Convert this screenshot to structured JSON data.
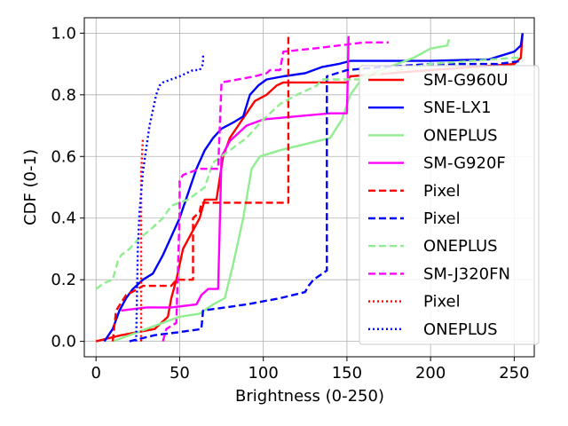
{
  "chart_data": {
    "type": "line",
    "title": "",
    "xlabel": "Brightness (0-250)",
    "ylabel": "CDF (0-1)",
    "xlim": [
      -7,
      262
    ],
    "ylim": [
      -0.05,
      1.05
    ],
    "xticks": [
      0,
      50,
      100,
      150,
      200,
      250
    ],
    "yticks": [
      0.0,
      0.2,
      0.4,
      0.6,
      0.8,
      1.0
    ],
    "xtick_labels": [
      "0",
      "50",
      "100",
      "150",
      "200",
      "250"
    ],
    "ytick_labels": [
      "0.0",
      "0.2",
      "0.4",
      "0.6",
      "0.8",
      "1.0"
    ],
    "grid": true,
    "legend_position": "lower-right",
    "series": [
      {
        "name": "SM-G960U",
        "color": "#ff0000",
        "style": "solid",
        "points": [
          [
            0,
            0.0
          ],
          [
            15,
            0.02
          ],
          [
            35,
            0.04
          ],
          [
            43,
            0.08
          ],
          [
            45,
            0.14
          ],
          [
            48,
            0.2
          ],
          [
            52,
            0.3
          ],
          [
            58,
            0.36
          ],
          [
            62,
            0.4
          ],
          [
            65,
            0.46
          ],
          [
            72,
            0.46
          ],
          [
            76,
            0.6
          ],
          [
            80,
            0.66
          ],
          [
            85,
            0.7
          ],
          [
            90,
            0.74
          ],
          [
            95,
            0.78
          ],
          [
            102,
            0.8
          ],
          [
            108,
            0.83
          ],
          [
            112,
            0.84
          ],
          [
            150,
            0.84
          ],
          [
            152,
            0.86
          ],
          [
            200,
            0.88
          ],
          [
            250,
            0.9
          ],
          [
            254,
            0.92
          ],
          [
            255,
            1.0
          ]
        ]
      },
      {
        "name": "SNE-LX1",
        "color": "#0000ff",
        "style": "solid",
        "points": [
          [
            5,
            0.0
          ],
          [
            10,
            0.04
          ],
          [
            14,
            0.1
          ],
          [
            18,
            0.14
          ],
          [
            22,
            0.17
          ],
          [
            28,
            0.2
          ],
          [
            34,
            0.22
          ],
          [
            40,
            0.28
          ],
          [
            45,
            0.34
          ],
          [
            50,
            0.4
          ],
          [
            55,
            0.48
          ],
          [
            60,
            0.56
          ],
          [
            65,
            0.62
          ],
          [
            70,
            0.66
          ],
          [
            75,
            0.69
          ],
          [
            82,
            0.71
          ],
          [
            88,
            0.73
          ],
          [
            92,
            0.8
          ],
          [
            97,
            0.83
          ],
          [
            102,
            0.85
          ],
          [
            112,
            0.86
          ],
          [
            125,
            0.87
          ],
          [
            135,
            0.89
          ],
          [
            145,
            0.9
          ],
          [
            152,
            0.91
          ],
          [
            200,
            0.91
          ],
          [
            235,
            0.915
          ],
          [
            250,
            0.94
          ],
          [
            254,
            0.96
          ],
          [
            255,
            1.0
          ]
        ]
      },
      {
        "name": "ONEPLUS",
        "color": "#90ee90",
        "style": "solid",
        "points": [
          [
            10,
            0.0
          ],
          [
            20,
            0.02
          ],
          [
            30,
            0.04
          ],
          [
            40,
            0.06
          ],
          [
            45,
            0.07
          ],
          [
            50,
            0.08
          ],
          [
            62,
            0.09
          ],
          [
            70,
            0.12
          ],
          [
            77,
            0.14
          ],
          [
            82,
            0.25
          ],
          [
            88,
            0.4
          ],
          [
            93,
            0.56
          ],
          [
            98,
            0.6
          ],
          [
            110,
            0.62
          ],
          [
            125,
            0.64
          ],
          [
            140,
            0.66
          ],
          [
            147,
            0.72
          ],
          [
            152,
            0.8
          ],
          [
            160,
            0.86
          ],
          [
            170,
            0.88
          ],
          [
            180,
            0.9
          ],
          [
            190,
            0.92
          ],
          [
            200,
            0.95
          ],
          [
            210,
            0.96
          ],
          [
            211,
            0.98
          ]
        ]
      },
      {
        "name": "SM-G920F",
        "color": "#ff00ff",
        "style": "solid",
        "points": [
          [
            15,
            0.1
          ],
          [
            30,
            0.11
          ],
          [
            45,
            0.11
          ],
          [
            60,
            0.12
          ],
          [
            63,
            0.15
          ],
          [
            67,
            0.17
          ],
          [
            73,
            0.17
          ],
          [
            75,
            0.6
          ],
          [
            80,
            0.65
          ],
          [
            90,
            0.7
          ],
          [
            100,
            0.72
          ],
          [
            120,
            0.73
          ],
          [
            140,
            0.74
          ],
          [
            150,
            0.74
          ],
          [
            151,
            0.99
          ]
        ]
      },
      {
        "name": "Pixel",
        "color": "#ff0000",
        "style": "dashed",
        "points": [
          [
            10,
            0.0
          ],
          [
            12,
            0.1
          ],
          [
            18,
            0.15
          ],
          [
            25,
            0.17
          ],
          [
            28,
            0.18
          ],
          [
            45,
            0.18
          ],
          [
            48,
            0.2
          ],
          [
            58,
            0.2
          ],
          [
            58,
            0.4
          ],
          [
            62,
            0.42
          ],
          [
            63,
            0.45
          ],
          [
            115,
            0.45
          ],
          [
            115,
            1.0
          ]
        ]
      },
      {
        "name": "Pixel",
        "color": "#0000ff",
        "style": "dashed",
        "points": [
          [
            20,
            0.0
          ],
          [
            35,
            0.02
          ],
          [
            50,
            0.03
          ],
          [
            63,
            0.04
          ],
          [
            64,
            0.1
          ],
          [
            90,
            0.12
          ],
          [
            110,
            0.14
          ],
          [
            125,
            0.16
          ],
          [
            127,
            0.18
          ],
          [
            130,
            0.2
          ],
          [
            138,
            0.23
          ],
          [
            138,
            0.86
          ],
          [
            150,
            0.88
          ],
          [
            170,
            0.89
          ],
          [
            200,
            0.9
          ],
          [
            240,
            0.9
          ],
          [
            255,
            0.91
          ]
        ]
      },
      {
        "name": "ONEPLUS",
        "color": "#90ee90",
        "style": "dashed",
        "points": [
          [
            0,
            0.17
          ],
          [
            5,
            0.19
          ],
          [
            10,
            0.2
          ],
          [
            13,
            0.26
          ],
          [
            15,
            0.28
          ],
          [
            20,
            0.3
          ],
          [
            25,
            0.33
          ],
          [
            32,
            0.36
          ],
          [
            40,
            0.4
          ],
          [
            45,
            0.44
          ],
          [
            55,
            0.46
          ],
          [
            65,
            0.5
          ],
          [
            70,
            0.58
          ],
          [
            80,
            0.62
          ],
          [
            90,
            0.66
          ],
          [
            100,
            0.72
          ],
          [
            110,
            0.77
          ],
          [
            120,
            0.8
          ],
          [
            132,
            0.83
          ],
          [
            135,
            0.85
          ],
          [
            160,
            0.85
          ],
          [
            170,
            0.87
          ],
          [
            180,
            0.88
          ],
          [
            200,
            0.9
          ],
          [
            250,
            0.92
          ],
          [
            255,
            0.92
          ]
        ]
      },
      {
        "name": "SM-J320FN",
        "color": "#ff00ff",
        "style": "dashed",
        "points": [
          [
            40,
            0.0
          ],
          [
            42,
            0.04
          ],
          [
            48,
            0.06
          ],
          [
            50,
            0.42
          ],
          [
            50,
            0.52
          ],
          [
            52,
            0.54
          ],
          [
            62,
            0.56
          ],
          [
            73,
            0.56
          ],
          [
            75,
            0.84
          ],
          [
            95,
            0.86
          ],
          [
            102,
            0.87
          ],
          [
            104,
            0.88
          ],
          [
            110,
            0.88
          ],
          [
            112,
            0.94
          ],
          [
            130,
            0.95
          ],
          [
            145,
            0.96
          ],
          [
            160,
            0.97
          ],
          [
            175,
            0.97
          ]
        ]
      },
      {
        "name": "Pixel",
        "color": "#ff0000",
        "style": "dotted",
        "points": [
          [
            27,
            0.0
          ],
          [
            27,
            0.25
          ],
          [
            27,
            0.45
          ],
          [
            27,
            0.55
          ],
          [
            28,
            0.66
          ]
        ]
      },
      {
        "name": "ONEPLUS",
        "color": "#0000ff",
        "style": "dotted",
        "points": [
          [
            24,
            0.0
          ],
          [
            25,
            0.3
          ],
          [
            26,
            0.42
          ],
          [
            28,
            0.55
          ],
          [
            32,
            0.7
          ],
          [
            36,
            0.8
          ],
          [
            38,
            0.83
          ],
          [
            40,
            0.84
          ],
          [
            50,
            0.86
          ],
          [
            58,
            0.88
          ],
          [
            62,
            0.88
          ],
          [
            64,
            0.9
          ],
          [
            64,
            0.93
          ]
        ]
      }
    ]
  }
}
